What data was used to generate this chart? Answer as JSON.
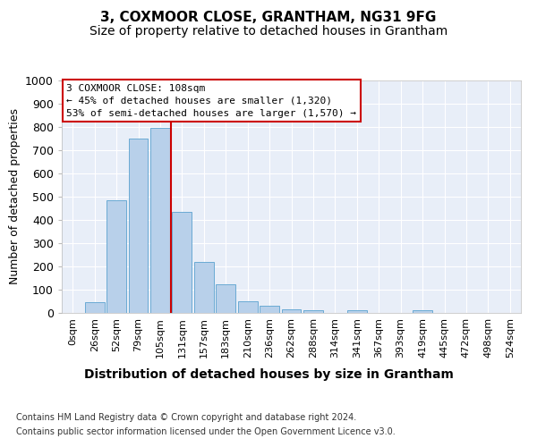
{
  "title": "3, COXMOOR CLOSE, GRANTHAM, NG31 9FG",
  "subtitle": "Size of property relative to detached houses in Grantham",
  "xlabel": "Distribution of detached houses by size in Grantham",
  "ylabel": "Number of detached properties",
  "bar_labels": [
    "0sqm",
    "26sqm",
    "52sqm",
    "79sqm",
    "105sqm",
    "131sqm",
    "157sqm",
    "183sqm",
    "210sqm",
    "236sqm",
    "262sqm",
    "288sqm",
    "314sqm",
    "341sqm",
    "367sqm",
    "393sqm",
    "419sqm",
    "445sqm",
    "472sqm",
    "498sqm",
    "524sqm"
  ],
  "bar_values": [
    0,
    45,
    485,
    750,
    795,
    435,
    220,
    125,
    50,
    30,
    15,
    10,
    0,
    10,
    0,
    0,
    10,
    0,
    0,
    0,
    0
  ],
  "bar_color": "#b8d0ea",
  "bar_edgecolor": "#6aaad4",
  "bar_linewidth": 0.7,
  "vline_index": 4,
  "vline_color": "#cc0000",
  "vline_linewidth": 1.5,
  "annotation_text": "3 COXMOOR CLOSE: 108sqm\n← 45% of detached houses are smaller (1,320)\n53% of semi-detached houses are larger (1,570) →",
  "annotation_box_facecolor": "#ffffff",
  "annotation_box_edgecolor": "#cc0000",
  "plot_facecolor": "#e8eef8",
  "fig_facecolor": "#ffffff",
  "ylim": [
    0,
    1000
  ],
  "yticks": [
    0,
    100,
    200,
    300,
    400,
    500,
    600,
    700,
    800,
    900,
    1000
  ],
  "footer_line1": "Contains HM Land Registry data © Crown copyright and database right 2024.",
  "footer_line2": "Contains public sector information licensed under the Open Government Licence v3.0.",
  "title_fontsize": 11,
  "subtitle_fontsize": 10,
  "xlabel_fontsize": 10,
  "ylabel_fontsize": 9,
  "ytick_fontsize": 9,
  "xtick_fontsize": 8,
  "footer_fontsize": 7,
  "annotation_fontsize": 8
}
